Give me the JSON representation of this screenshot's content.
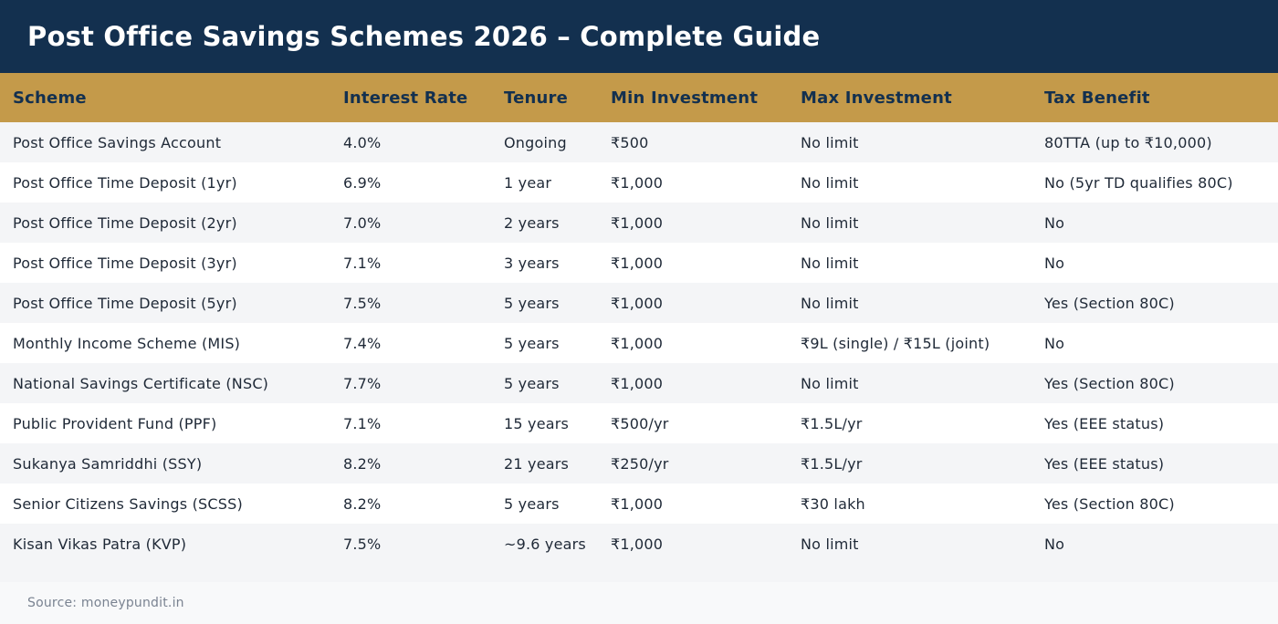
{
  "header": {
    "title": "Post Office Savings Schemes 2026 – Complete Guide"
  },
  "table": {
    "columns": [
      "Scheme",
      "Interest Rate",
      "Tenure",
      "Min Investment",
      "Max Investment",
      "Tax Benefit"
    ],
    "rows": [
      [
        "Post Office Savings Account",
        "4.0%",
        "Ongoing",
        "₹500",
        "No limit",
        "80TTA (up to ₹10,000)"
      ],
      [
        "Post Office Time Deposit (1yr)",
        "6.9%",
        "1 year",
        "₹1,000",
        "No limit",
        "No (5yr TD qualifies 80C)"
      ],
      [
        "Post Office Time Deposit (2yr)",
        "7.0%",
        "2 years",
        "₹1,000",
        "No limit",
        "No"
      ],
      [
        "Post Office Time Deposit (3yr)",
        "7.1%",
        "3 years",
        "₹1,000",
        "No limit",
        "No"
      ],
      [
        "Post Office Time Deposit (5yr)",
        "7.5%",
        "5 years",
        "₹1,000",
        "No limit",
        "Yes (Section 80C)"
      ],
      [
        "Monthly Income Scheme (MIS)",
        "7.4%",
        "5 years",
        "₹1,000",
        "₹9L (single) / ₹15L (joint)",
        "No"
      ],
      [
        "National Savings Certificate (NSC)",
        "7.7%",
        "5 years",
        "₹1,000",
        "No limit",
        "Yes (Section 80C)"
      ],
      [
        "Public Provident Fund (PPF)",
        "7.1%",
        "15 years",
        "₹500/yr",
        "₹1.5L/yr",
        "Yes (EEE status)"
      ],
      [
        "Sukanya Samriddhi (SSY)",
        "8.2%",
        "21 years",
        "₹250/yr",
        "₹1.5L/yr",
        "Yes (EEE status)"
      ],
      [
        "Senior Citizens Savings (SCSS)",
        "8.2%",
        "5 years",
        "₹1,000",
        "₹30 lakh",
        "Yes (Section 80C)"
      ],
      [
        "Kisan Vikas Patra (KVP)",
        "7.5%",
        "~9.6 years",
        "₹1,000",
        "No limit",
        "No"
      ]
    ]
  },
  "footer": {
    "source": "Source: moneypundit.in"
  },
  "colors": {
    "title_bg": "#13304f",
    "header_bg": "#c49a4a",
    "row_alt_bg": "#f4f5f7"
  }
}
